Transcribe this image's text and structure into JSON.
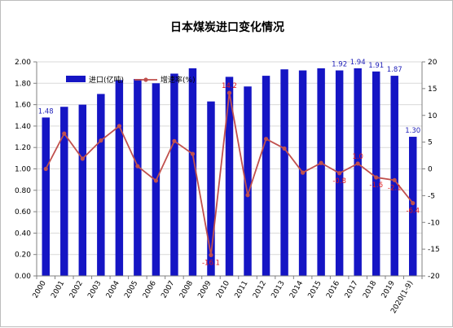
{
  "chart_data": {
    "type": "bar",
    "title": "日本煤炭进口变化情况",
    "categories": [
      "2000",
      "2001",
      "2002",
      "2003",
      "2004",
      "2005",
      "2006",
      "2007",
      "2008",
      "2009",
      "2010",
      "2011",
      "2012",
      "2013",
      "2014",
      "2015",
      "2016",
      "2017",
      "2018",
      "2019",
      "2020(1-9)"
    ],
    "series": [
      {
        "name": "进口(亿吨)",
        "type": "bar",
        "axis": "left",
        "color": "#1515c4",
        "values": [
          1.48,
          1.58,
          1.6,
          1.7,
          1.83,
          1.84,
          1.8,
          1.89,
          1.94,
          1.63,
          1.86,
          1.77,
          1.87,
          1.93,
          1.92,
          1.94,
          1.92,
          1.94,
          1.91,
          1.87,
          1.3
        ],
        "data_labels": {
          "2000": "1.48",
          "2016": "1.92",
          "2017": "1.94",
          "2018": "1.91",
          "2019": "1.87",
          "2020(1-9)": "1.30"
        }
      },
      {
        "name": "增速率(%)",
        "type": "line",
        "axis": "right",
        "color": "#c0504d",
        "values": [
          0.0,
          6.6,
          1.9,
          5.3,
          8.0,
          0.5,
          -2.2,
          5.2,
          2.8,
          -16.1,
          14.2,
          -4.9,
          5.6,
          3.8,
          -0.7,
          1.1,
          -0.8,
          1.0,
          -1.6,
          -2.1,
          -6.4
        ],
        "data_labels": {
          "2009": "-16.1",
          "2010": "14.2",
          "2016": "-0.8",
          "2017": "1.0",
          "2018": "-1.6",
          "2019": "-2.1",
          "2020(1-9)": "-6.4"
        }
      }
    ],
    "y_left": {
      "min": 0.0,
      "max": 2.0,
      "step": 0.2,
      "tick_labels": [
        "0.00",
        "0.20",
        "0.40",
        "0.60",
        "0.80",
        "1.00",
        "1.20",
        "1.40",
        "1.60",
        "1.80",
        "2.00"
      ]
    },
    "y_right": {
      "min": -20,
      "max": 20,
      "step": 5,
      "tick_labels": [
        "-20",
        "-15",
        "-10",
        "-5",
        "0",
        "5",
        "10",
        "15",
        "20"
      ]
    },
    "grid": true,
    "legend_position": "top-left"
  }
}
